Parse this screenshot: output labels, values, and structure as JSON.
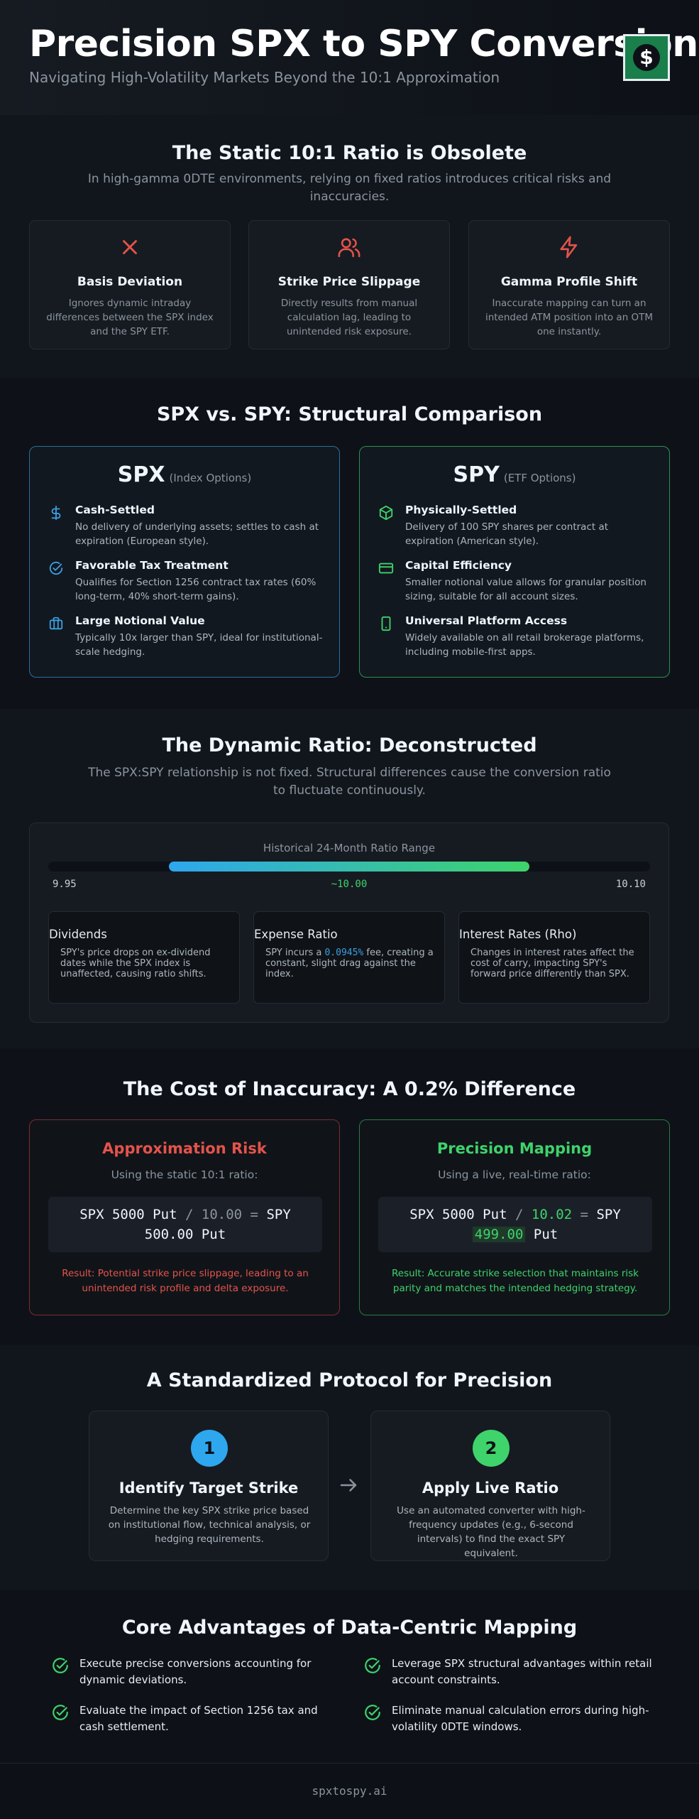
{
  "header": {
    "title": "Precision SPX to SPY Conversion",
    "subtitle": "Navigating High-Volatility Markets Beyond the 10:1 Approximation",
    "logo_glyph": "$"
  },
  "obsolete": {
    "title": "The Static 10:1 Ratio is Obsolete",
    "lead": "In high-gamma 0DTE environments, relying on fixed ratios introduces critical risks and inaccuracies.",
    "cards": [
      {
        "icon": "x-icon",
        "title": "Basis Deviation",
        "desc": "Ignores dynamic intraday differences between the SPX index and the SPY ETF."
      },
      {
        "icon": "users-icon",
        "title": "Strike Price Slippage",
        "desc": "Directly results from manual calculation lag, leading to unintended risk exposure."
      },
      {
        "icon": "lightning-icon",
        "title": "Gamma Profile Shift",
        "desc": "Inaccurate mapping can turn an intended ATM position into an OTM one instantly."
      }
    ]
  },
  "comparison": {
    "title": "SPX vs. SPY: Structural Comparison",
    "spx": {
      "name": "SPX",
      "tag": "(Index Options)",
      "features": [
        {
          "icon": "dollar-icon",
          "title": "Cash-Settled",
          "desc": "No delivery of underlying assets; settles to cash at expiration (European style)."
        },
        {
          "icon": "check-badge-icon",
          "title": "Favorable Tax Treatment",
          "desc": "Qualifies for Section 1256 contract tax rates (60% long-term, 40% short-term gains)."
        },
        {
          "icon": "briefcase-icon",
          "title": "Large Notional Value",
          "desc": "Typically 10x larger than SPY, ideal for institutional-scale hedging."
        }
      ]
    },
    "spy": {
      "name": "SPY",
      "tag": "(ETF Options)",
      "features": [
        {
          "icon": "cube-icon",
          "title": "Physically-Settled",
          "desc": "Delivery of 100 SPY shares per contract at expiration (American style)."
        },
        {
          "icon": "credit-card-icon",
          "title": "Capital Efficiency",
          "desc": "Smaller notional value allows for granular position sizing, suitable for all account sizes."
        },
        {
          "icon": "mobile-icon",
          "title": "Universal Platform Access",
          "desc": "Widely available on all retail brokerage platforms, including mobile-first apps."
        }
      ]
    }
  },
  "dynamic": {
    "title": "The Dynamic Ratio: Deconstructed",
    "lead": "The SPX:SPY relationship is not fixed. Structural differences cause the conversion ratio to fluctuate continuously.",
    "range_label": "Historical 24-Month Ratio Range",
    "axis_min": 9.9,
    "axis_max": 10.15,
    "range_low": 9.95,
    "range_high": 10.1,
    "tick_min": "9.95",
    "tick_mid": "~10.00",
    "tick_max": "10.10",
    "cards": [
      {
        "title": "Dividends",
        "desc": "SPY's price drops on ex-dividend dates while the SPX index is unaffected, causing ratio shifts."
      },
      {
        "title": "Expense Ratio",
        "desc_pre": "SPY incurs a ",
        "desc_hl": "0.0945%",
        "desc_post": " fee, creating a constant, slight drag against the index."
      },
      {
        "title": "Interest Rates (Rho)",
        "desc": "Changes in interest rates affect the cost of carry, impacting SPY's forward price differently than SPX."
      }
    ]
  },
  "cost": {
    "title": "The Cost of Inaccuracy: A 0.2% Difference",
    "approx": {
      "title": "Approximation Risk",
      "sub": "Using the static 10:1 ratio:",
      "f1": "SPX 5000 Put",
      "slash": "/",
      "ratio": "10.00",
      "eq": "=",
      "f2": "SPY",
      "f3": "500.00 Put",
      "result": "Result: Potential strike price slippage, leading to an unintended risk profile and delta exposure.",
      "color": "#e5534b"
    },
    "precise": {
      "title": "Precision Mapping",
      "sub": "Using a live, real-time ratio:",
      "f1": "SPX 5000 Put",
      "slash": "/",
      "ratio": "10.02",
      "eq": "=",
      "f2": "SPY",
      "f3": "499.00",
      "f4": "Put",
      "result": "Result: Accurate strike selection that maintains risk parity and matches the intended hedging strategy.",
      "color": "#3fd36b"
    }
  },
  "protocol": {
    "title": "A Standardized Protocol for Precision",
    "steps": [
      {
        "num": "1",
        "title": "Identify Target Strike",
        "desc": "Determine the key SPX strike price based on institutional flow, technical analysis, or hedging requirements.",
        "color": "#2ea7ee"
      },
      {
        "num": "2",
        "title": "Apply Live Ratio",
        "desc": "Use an automated converter with high-frequency updates (e.g., 6-second intervals) to find the exact SPY equivalent.",
        "color": "#3fd36b"
      }
    ]
  },
  "advantages": {
    "title": "Core Advantages of Data-Centric Mapping",
    "items": [
      "Execute precise conversions accounting for dynamic deviations.",
      "Leverage SPX structural advantages within retail account constraints.",
      "Evaluate the impact of Section 1256 tax and cash settlement.",
      "Eliminate manual calculation errors during high-volatility 0DTE windows."
    ]
  },
  "footer": {
    "text": "spxtospy.ai"
  }
}
